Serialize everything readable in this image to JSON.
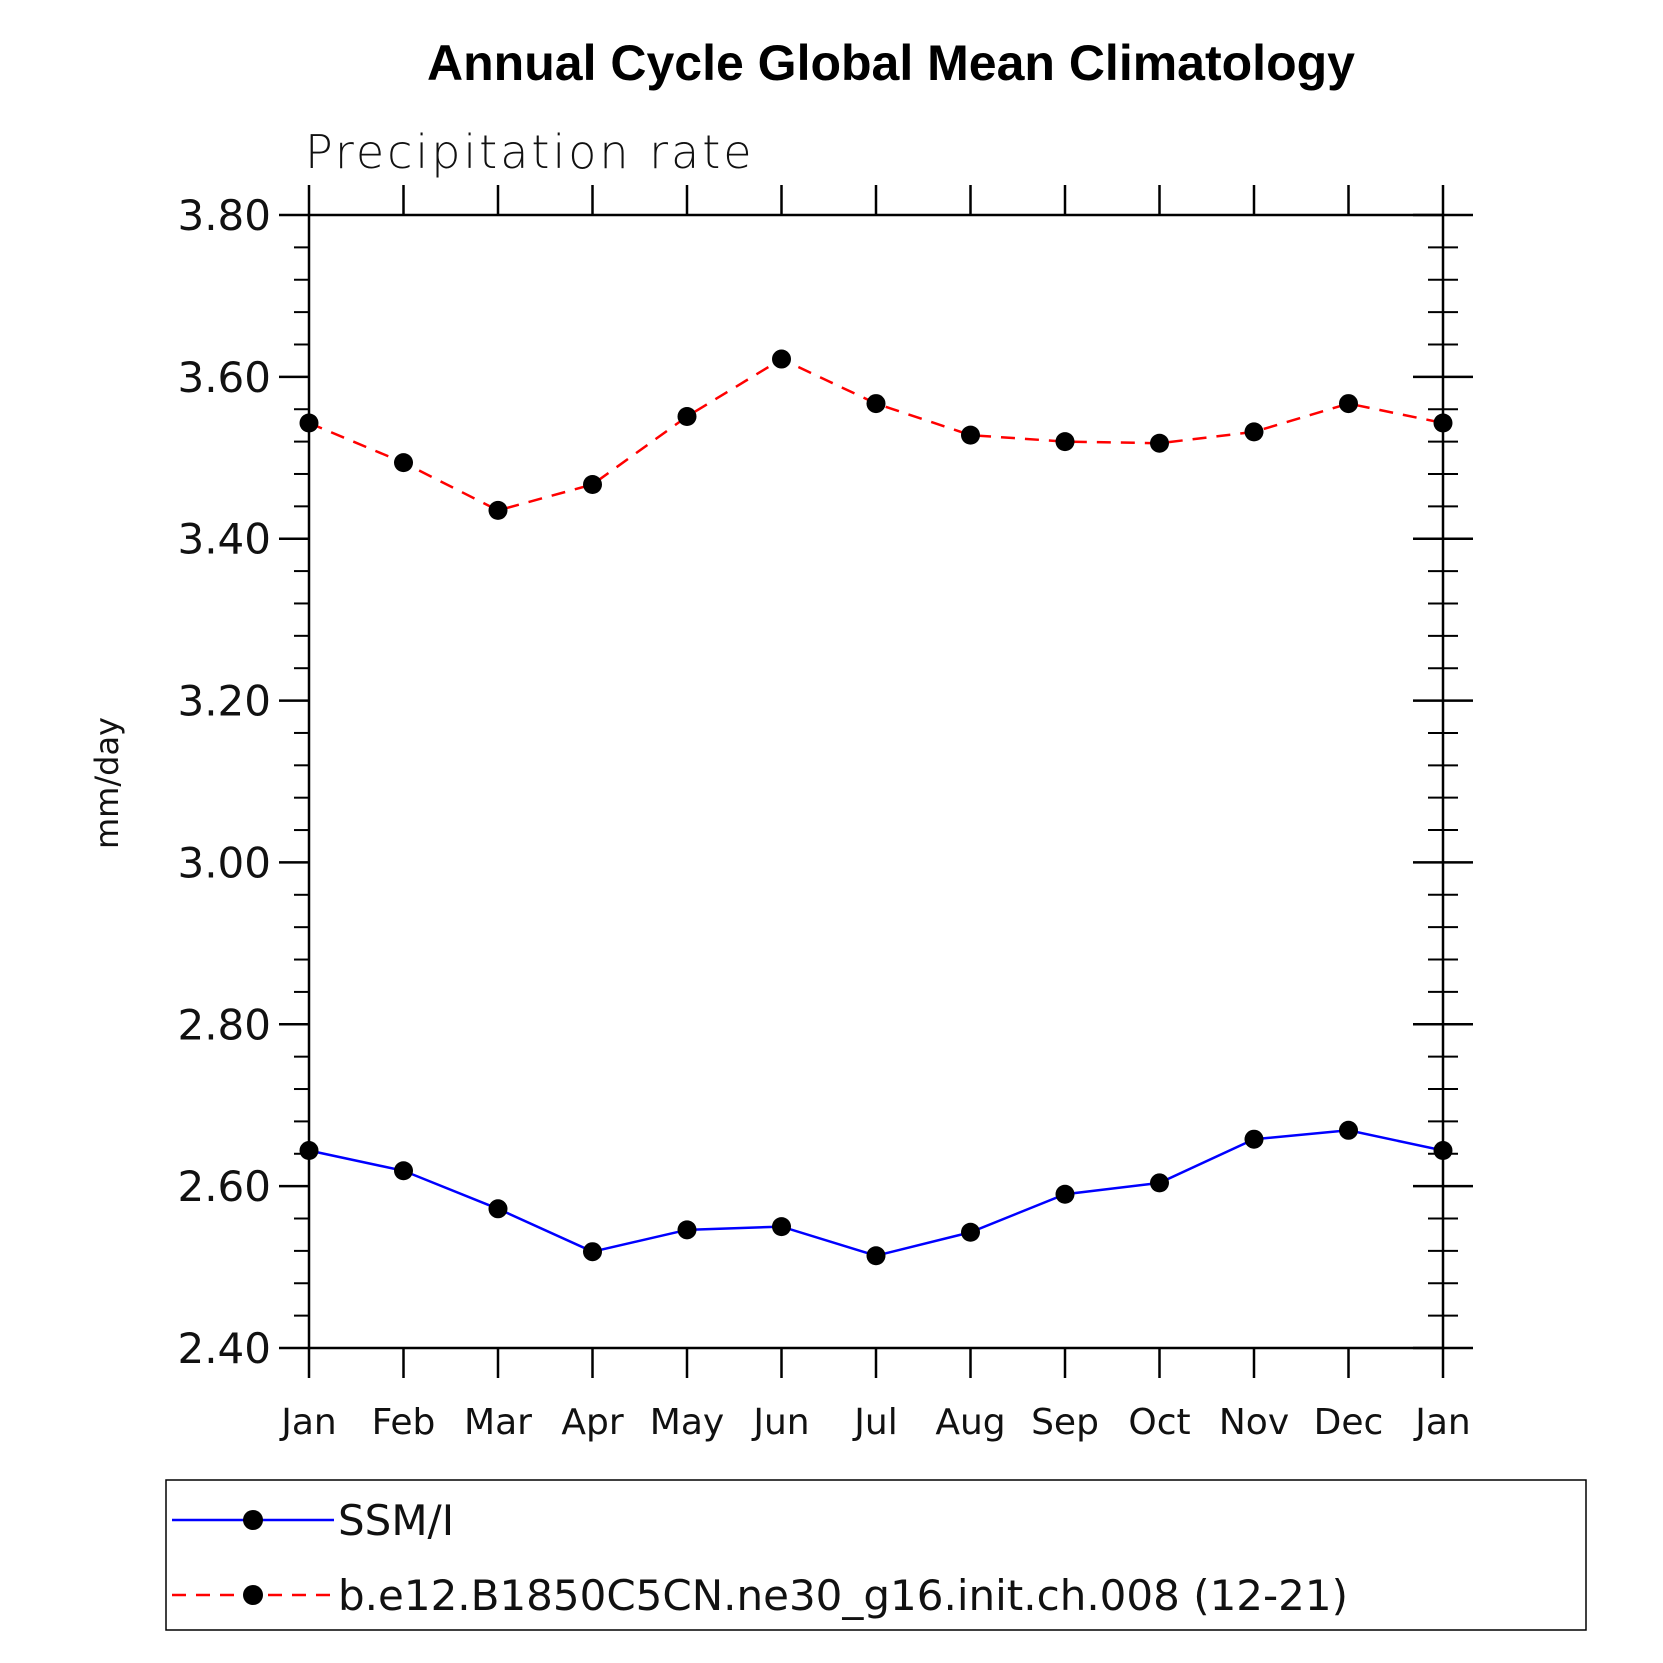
{
  "chart_data": {
    "type": "line",
    "title": "Annual Cycle Global Mean Climatology",
    "subtitle": "Precipitation rate",
    "ylabel": "mm/day",
    "xlabel": "",
    "categories": [
      "Jan",
      "Feb",
      "Mar",
      "Apr",
      "May",
      "Jun",
      "Jul",
      "Aug",
      "Sep",
      "Oct",
      "Nov",
      "Dec",
      "Jan"
    ],
    "ylim": [
      2.4,
      3.8
    ],
    "yticks": [
      "2.40",
      "2.60",
      "2.80",
      "3.00",
      "3.20",
      "3.40",
      "3.60",
      "3.80"
    ],
    "series": [
      {
        "name": "SSM/I",
        "color": "#0000ff",
        "line_style": "solid",
        "marker": "filled-circle",
        "values": [
          2.644,
          2.619,
          2.572,
          2.519,
          2.546,
          2.55,
          2.514,
          2.543,
          2.59,
          2.604,
          2.658,
          2.669,
          2.644
        ]
      },
      {
        "name": "b.e12.B1850C5CN.ne30_g16.init.ch.008 (12-21)",
        "color": "#ff0000",
        "line_style": "dashed",
        "marker": "filled-circle",
        "values": [
          3.543,
          3.494,
          3.435,
          3.467,
          3.551,
          3.622,
          3.567,
          3.528,
          3.52,
          3.518,
          3.532,
          3.567,
          3.543
        ]
      }
    ],
    "grid": false,
    "legend_position": "bottom"
  }
}
